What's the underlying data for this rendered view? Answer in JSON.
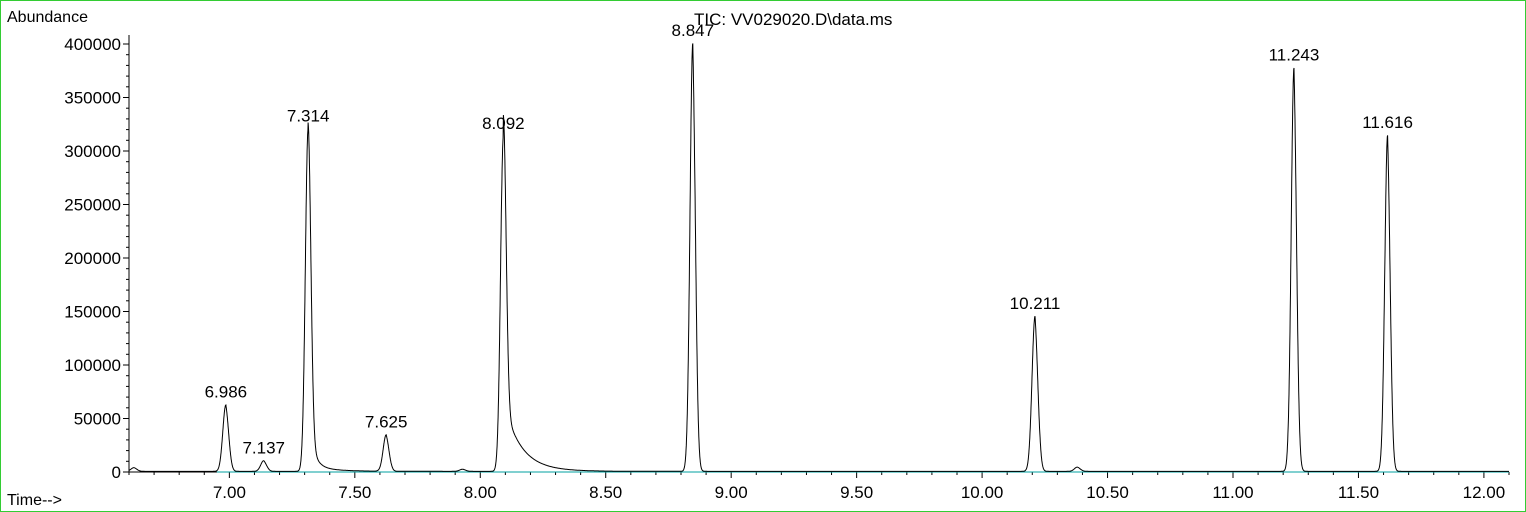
{
  "chart_data": {
    "type": "line",
    "title": "TIC: VV029020.D\\data.ms",
    "ylabel": "Abundance",
    "xlabel": "Time-->",
    "xlim": [
      6.6,
      12.1
    ],
    "ylim": [
      0,
      410000
    ],
    "x_ticks": [
      "7.00",
      "7.50",
      "8.00",
      "8.50",
      "9.00",
      "9.50",
      "10.00",
      "10.50",
      "11.00",
      "11.50",
      "12.00"
    ],
    "x_tick_values": [
      7.0,
      7.5,
      8.0,
      8.5,
      9.0,
      9.5,
      10.0,
      10.5,
      11.0,
      11.5,
      12.0
    ],
    "y_ticks": [
      "0",
      "50000",
      "100000",
      "150000",
      "200000",
      "250000",
      "300000",
      "350000",
      "400000"
    ],
    "y_tick_values": [
      0,
      50000,
      100000,
      150000,
      200000,
      250000,
      300000,
      350000,
      400000
    ],
    "grid": false,
    "colors": {
      "trace": "#000000",
      "baseline": "#00a0a0",
      "frame": "#33cc33"
    },
    "peaks": [
      {
        "label": "6.986",
        "x": 6.986,
        "y": 62000
      },
      {
        "label": "7.137",
        "x": 7.137,
        "y": 10000
      },
      {
        "label": "7.314",
        "x": 7.314,
        "y": 320000
      },
      {
        "label": "7.625",
        "x": 7.625,
        "y": 34000
      },
      {
        "label": "8.092",
        "x": 8.092,
        "y": 313000
      },
      {
        "label": "8.847",
        "x": 8.847,
        "y": 400000
      },
      {
        "label": "10.211",
        "x": 10.211,
        "y": 145000
      },
      {
        "label": "11.243",
        "x": 11.243,
        "y": 377000
      },
      {
        "label": "11.616",
        "x": 11.616,
        "y": 314000
      }
    ],
    "minor_peaks": [
      {
        "x": 7.93,
        "y": 2000
      },
      {
        "x": 10.38,
        "y": 4000
      },
      {
        "x": 6.62,
        "y": 3500
      }
    ]
  }
}
